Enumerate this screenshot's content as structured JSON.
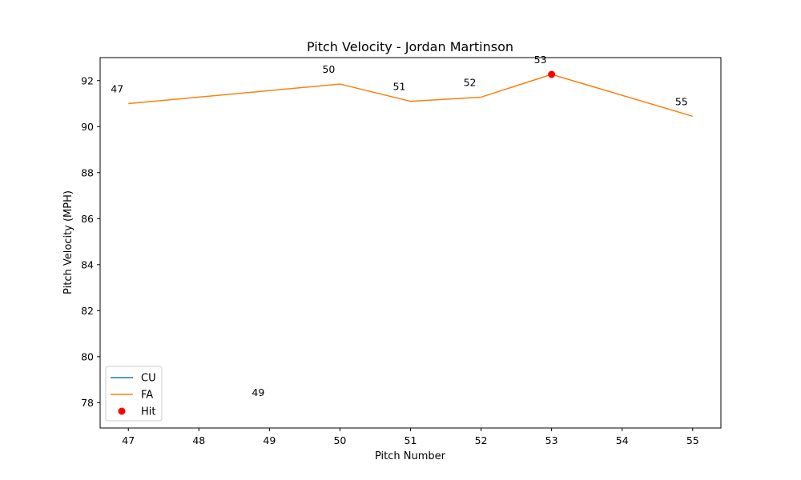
{
  "chart_data": {
    "type": "line",
    "title": "Pitch Velocity - Jordan Martinson",
    "xlabel": "Pitch Number",
    "ylabel": "Pitch Velocity (MPH)",
    "xlim": [
      46.6,
      55.4
    ],
    "ylim": [
      76.9,
      93.0
    ],
    "xticks": [
      47,
      48,
      49,
      50,
      51,
      52,
      53,
      54,
      55
    ],
    "yticks": [
      78,
      80,
      82,
      84,
      86,
      88,
      90,
      92
    ],
    "grid": false,
    "legend_position": "lower-left",
    "series": [
      {
        "name": "CU",
        "color": "#1f77b4",
        "x": [
          49
        ],
        "y": [
          77.8
        ]
      },
      {
        "name": "FA",
        "color": "#ff7f0e",
        "x": [
          47,
          50,
          51,
          52,
          53,
          55
        ],
        "y": [
          91.0,
          91.85,
          91.1,
          91.28,
          92.27,
          90.45
        ]
      }
    ],
    "hits": {
      "name": "Hit",
      "color": "#ff0000",
      "x": [
        53
      ],
      "y": [
        92.27
      ]
    },
    "point_labels": [
      {
        "text": "47",
        "x": 47,
        "y": 91.0
      },
      {
        "text": "49",
        "x": 49,
        "y": 77.8
      },
      {
        "text": "50",
        "x": 50,
        "y": 91.85
      },
      {
        "text": "51",
        "x": 51,
        "y": 91.1
      },
      {
        "text": "52",
        "x": 52,
        "y": 91.28
      },
      {
        "text": "53",
        "x": 53,
        "y": 92.27
      },
      {
        "text": "55",
        "x": 55,
        "y": 90.45
      }
    ]
  }
}
